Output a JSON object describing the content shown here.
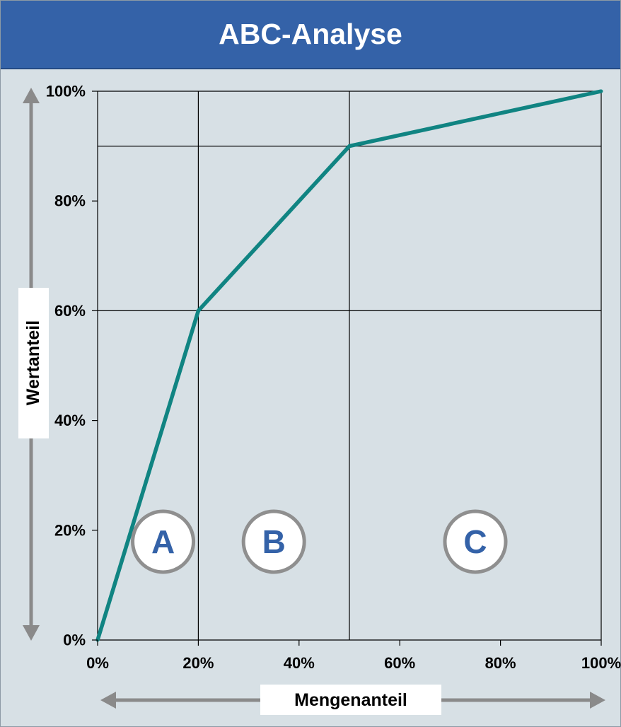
{
  "chart_data": {
    "type": "line",
    "title": "ABC-Analyse",
    "xlabel": "Mengenanteil",
    "ylabel": "Wertanteil",
    "x_ticks": [
      "0%",
      "20%",
      "40%",
      "60%",
      "80%",
      "100%"
    ],
    "y_ticks": [
      "0%",
      "20%",
      "40%",
      "60%",
      "80%",
      "100%"
    ],
    "xlim": [
      0,
      100
    ],
    "ylim": [
      0,
      100
    ],
    "series": [
      {
        "x": [
          0,
          20,
          50,
          100
        ],
        "y": [
          0,
          60,
          90,
          100
        ]
      }
    ],
    "gridlines_x": [
      0,
      20,
      50,
      100
    ],
    "gridlines_y": [
      60,
      90,
      100
    ],
    "zones": [
      {
        "label": "A",
        "x": 13
      },
      {
        "label": "B",
        "x": 35
      },
      {
        "label": "C",
        "x": 75
      }
    ],
    "colors": {
      "line": "#108482",
      "header": "#3462a8",
      "background": "#d7e0e5",
      "zone_text": "#3462a8",
      "zone_border": "#8f8f8f",
      "arrow": "#8a8a8a"
    }
  }
}
